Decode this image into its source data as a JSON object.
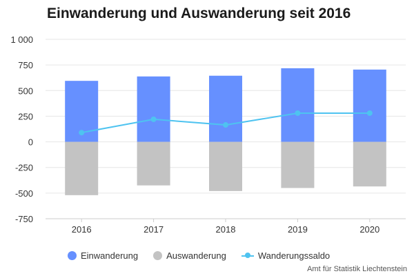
{
  "chart_data": {
    "type": "bar",
    "title": "Einwanderung und Auswanderung seit 2016",
    "categories": [
      "2016",
      "2017",
      "2018",
      "2019",
      "2020"
    ],
    "series": [
      {
        "name": "Einwanderung",
        "type": "bar",
        "color": "#6690ff",
        "values": [
          595,
          638,
          645,
          718,
          705
        ]
      },
      {
        "name": "Auswanderung",
        "type": "bar",
        "color": "#c3c3c3",
        "values": [
          -520,
          -425,
          -480,
          -450,
          -435
        ]
      },
      {
        "name": "Wanderungssaldo",
        "type": "line",
        "color": "#4ec3f0",
        "values": [
          90,
          220,
          165,
          280,
          280
        ]
      }
    ],
    "ylim": [
      -750,
      1000
    ],
    "yticks": [
      1000,
      750,
      500,
      250,
      0,
      -250,
      -500,
      -750
    ],
    "ytick_labels": [
      "1 000",
      "750",
      "500",
      "250",
      "0",
      "-250",
      "-500",
      "-750"
    ],
    "grid": true,
    "legend_position": "bottom",
    "xlabel": "",
    "ylabel": ""
  },
  "source": "Amt für Statistik Liechtenstein"
}
